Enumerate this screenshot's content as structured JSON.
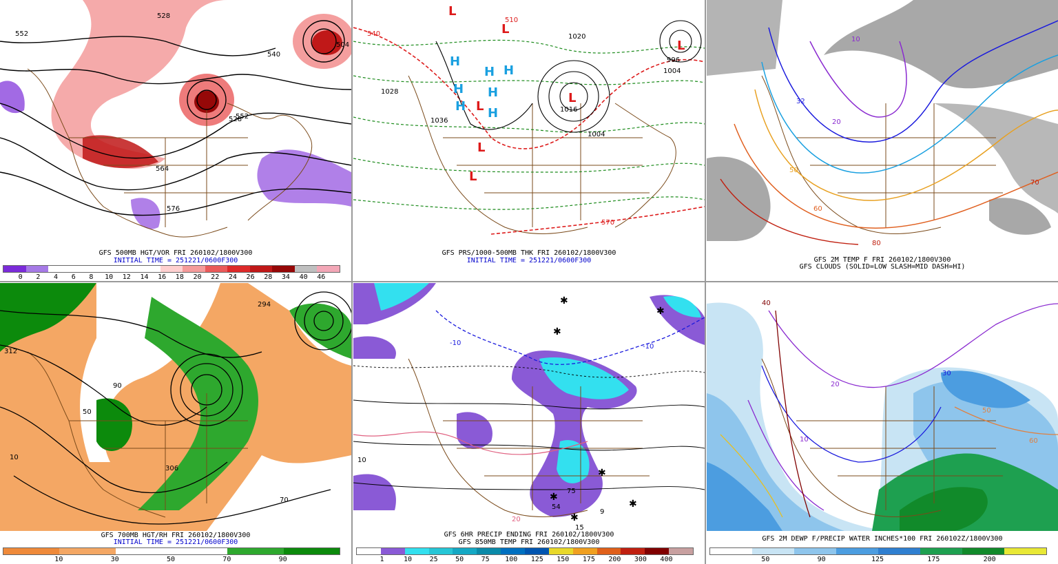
{
  "panels": [
    {
      "caption_line1": "GFS 500MB HGT/VOR FRI 260102/1800V300",
      "caption_line2": "INITIAL TIME = 251221/0600F300",
      "colorbar": {
        "colors": [
          "#7b2bd9",
          "#a67ae6",
          "#ffffff",
          "#ffffff",
          "#ffffff",
          "#ffffff",
          "#ffffff",
          "#ffd0d0",
          "#f59b9b",
          "#ea5a5a",
          "#dd2a2a",
          "#c01818",
          "#960808",
          "#bfbfbf",
          "#f3a7b7"
        ],
        "ticks": [
          "0",
          "2",
          "4",
          "6",
          "8",
          "10",
          "12",
          "14",
          "16",
          "18",
          "20",
          "22",
          "24",
          "26",
          "28",
          "34",
          "40",
          "46"
        ]
      },
      "contour_labels": [
        "552",
        "528",
        "540",
        "504",
        "528",
        "552",
        "564",
        "576"
      ]
    },
    {
      "caption_line1": "GFS PRS/1000-500MB THK FRI 260102/1800V300",
      "caption_line2": "INITIAL TIME = 251221/0600F300",
      "contour_labels": [
        "510",
        "540",
        "1020",
        "1028",
        "1036",
        "1016",
        "1004",
        "570",
        "996",
        "1004"
      ]
    },
    {
      "caption_line1": "GFS 2M TEMP F FRI 260102/1800V300",
      "caption_line2": "GFS CLOUDS (SOLID=LOW SLASH=MID DASH=HI)",
      "contour_labels": [
        "10",
        "20",
        "32",
        "50",
        "60",
        "70",
        "80"
      ]
    },
    {
      "caption_line1": "GFS 700MB HGT/RH FRI 260102/1800V300",
      "caption_line2": "INITIAL TIME = 251221/0600F300",
      "colorbar": {
        "colors": [
          "#ef8a3a",
          "#f4a764",
          "#ffffff",
          "#ffffff",
          "#2ea82e",
          "#0c8a0c"
        ],
        "ticks": [
          "10",
          "30",
          "50",
          "70",
          "90"
        ]
      },
      "contour_labels": [
        "294",
        "306",
        "312",
        "50",
        "10",
        "90",
        "70"
      ]
    },
    {
      "caption_line1": "GFS 6HR PRECIP ENDING FRI 260102/1800V300",
      "caption_line2": "GFS 850MB TEMP FRI 260102/1800V300",
      "colorbar": {
        "colors": [
          "#ffffff",
          "#8a5ad6",
          "#33e0ef",
          "#26c6d6",
          "#14a8c4",
          "#0a8aa8",
          "#0070c0",
          "#0055b0",
          "#e8d82a",
          "#f0a020",
          "#e0601a",
          "#c02010",
          "#800000",
          "#c8a0a0"
        ],
        "ticks": [
          "1",
          "10",
          "25",
          "50",
          "75",
          "100",
          "125",
          "150",
          "175",
          "200",
          "300",
          "400"
        ]
      },
      "contour_labels": [
        "-10",
        "-10",
        "10",
        "20",
        "9",
        "75",
        "15",
        "54"
      ]
    },
    {
      "caption_line1": "GFS 2M DEWP F/PRECIP WATER INCHES*100 FRI 260102Z/1800V300",
      "caption_line2": "",
      "colorbar": {
        "colors": [
          "#ffffff",
          "#c8e4f4",
          "#8ec5ec",
          "#4c9de0",
          "#2f7fd0",
          "#1ea050",
          "#118a2a",
          "#e8e836"
        ],
        "ticks": [
          "50",
          "90",
          "125",
          "175",
          "200"
        ]
      },
      "contour_labels": [
        "40",
        "30",
        "20",
        "10",
        "50",
        "60"
      ]
    }
  ]
}
